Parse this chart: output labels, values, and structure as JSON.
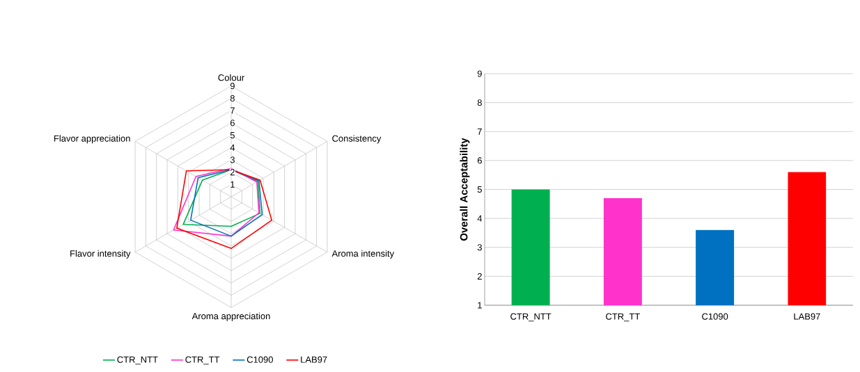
{
  "chart_data": [
    {
      "type": "radar",
      "categories": [
        "Colour",
        "Consistency",
        "Aroma intensity",
        "Aroma appreciation",
        "Flavor intensity",
        "Flavor appreciation"
      ],
      "series": [
        {
          "name": "CTR_NTT",
          "color": "#00b050",
          "values": [
            2.2,
            2.5,
            2.7,
            2.4,
            4.5,
            2.7
          ]
        },
        {
          "name": "CTR_TT",
          "color": "#ff33cc",
          "values": [
            2.3,
            2.4,
            2.6,
            3.2,
            5.4,
            3.3
          ]
        },
        {
          "name": "C1090",
          "color": "#0070c0",
          "values": [
            2.2,
            2.6,
            2.9,
            3.2,
            3.8,
            3.1
          ]
        },
        {
          "name": "LAB97",
          "color": "#ff0000",
          "values": [
            2.2,
            2.7,
            3.8,
            4.2,
            5.1,
            4.2
          ]
        }
      ],
      "ylim": [
        0,
        9
      ],
      "yticks": [
        1,
        2,
        3,
        4,
        5,
        6,
        7,
        8,
        9
      ],
      "legend": "bottom"
    },
    {
      "type": "bar",
      "ylabel": "Overall Acceptability",
      "categories": [
        "CTR_NTT",
        "CTR_TT",
        "C1090",
        "LAB97"
      ],
      "values": [
        5.0,
        4.7,
        3.6,
        5.6
      ],
      "colors": [
        "#00b050",
        "#ff33cc",
        "#0070c0",
        "#ff0000"
      ],
      "ylim": [
        1,
        9
      ],
      "yticks": [
        1,
        2,
        3,
        4,
        5,
        6,
        7,
        8,
        9
      ],
      "grid": "y"
    }
  ]
}
